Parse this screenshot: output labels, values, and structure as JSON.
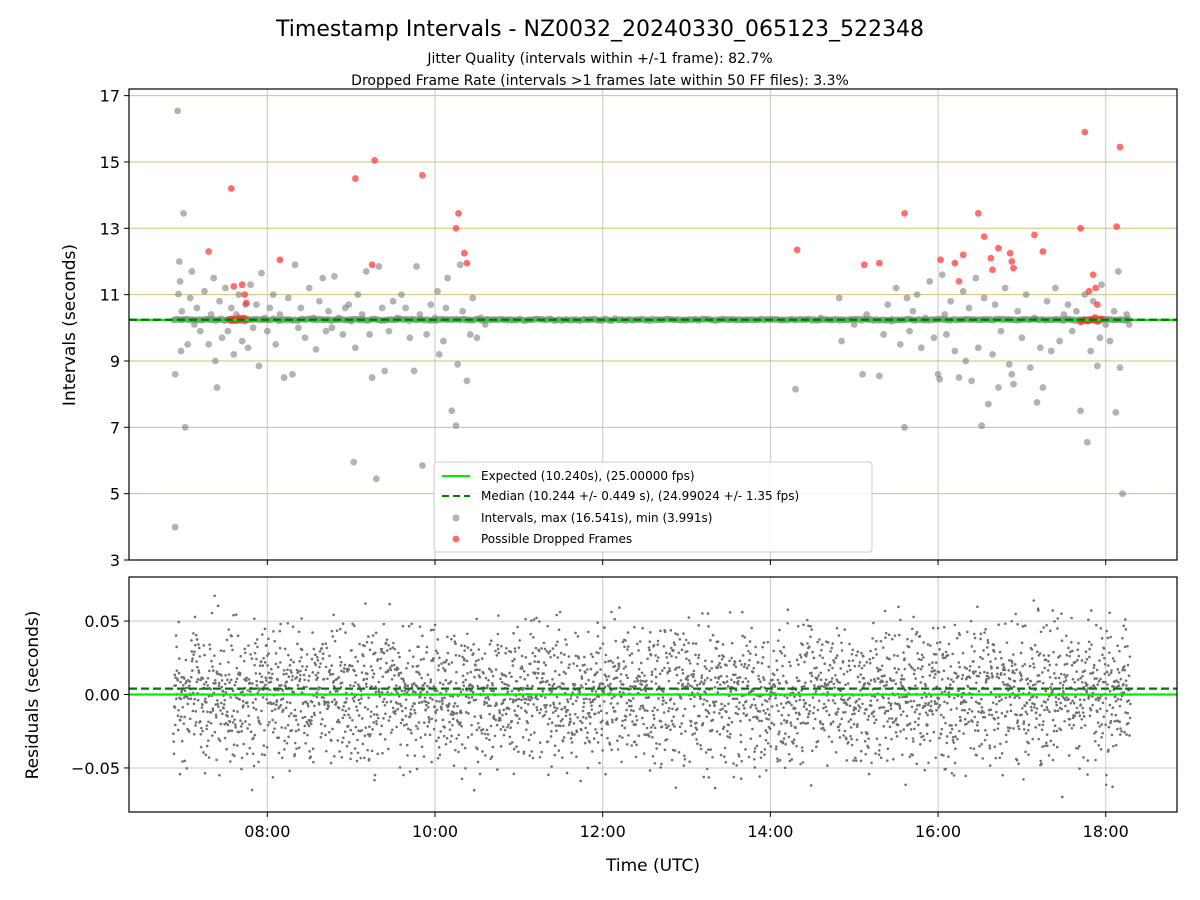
{
  "chart_data": [
    {
      "type": "scatter",
      "panel": "intervals",
      "title": "Timestamp Intervals - NZ0032_20240330_065123_522348",
      "subtitle_lines": [
        "Jitter Quality (intervals within +/-1 frame): 82.7%",
        "Dropped Frame Rate (intervals >1 frames late within 50 FF files): 3.3%"
      ],
      "ylabel": "Intervals (seconds)",
      "ylim": [
        3,
        17.2
      ],
      "xlim_hours": [
        6.35,
        18.85
      ],
      "yticks": [
        "3",
        "5",
        "7",
        "9",
        "11",
        "13",
        "15",
        "17"
      ],
      "ytick_values": [
        3,
        5,
        7,
        9,
        11,
        13,
        15,
        17
      ],
      "x_grid_hours": [
        8,
        10,
        12,
        14,
        16,
        18
      ],
      "expected_interval": 10.24,
      "median_interval": 10.244,
      "grid": "horizontal goldenrod lines, vertical gray lines",
      "legend_position": "lower center",
      "legend": [
        {
          "label": "Expected (10.240s), (25.00000 fps)",
          "style": "solid",
          "color": "#00ee00"
        },
        {
          "label": "Median (10.244 +/- 0.449 s), (24.99024 +/- 1.35 fps)",
          "style": "dashed",
          "color": "#007a00"
        },
        {
          "label": "Intervals, max (16.541s), min (3.991s)",
          "style": "marker",
          "color": "#808080"
        },
        {
          "label": "Possible Dropped Frames",
          "style": "marker",
          "color": "#ff3030"
        }
      ],
      "series": [
        {
          "name": "Intervals, max (16.541s), min (3.991s)",
          "color": "#808080",
          "points": [
            [
              6.93,
              16.54
            ],
            [
              6.94,
              11.02
            ],
            [
              6.95,
              12.0
            ],
            [
              6.96,
              11.4
            ],
            [
              6.97,
              9.3
            ],
            [
              6.98,
              10.5
            ],
            [
              7.0,
              13.45
            ],
            [
              7.02,
              7.0
            ],
            [
              7.05,
              9.5
            ],
            [
              7.08,
              10.9
            ],
            [
              7.1,
              11.7
            ],
            [
              7.13,
              10.1
            ],
            [
              7.16,
              10.6
            ],
            [
              7.2,
              9.9
            ],
            [
              7.25,
              11.1
            ],
            [
              7.3,
              9.5
            ],
            [
              7.33,
              10.4
            ],
            [
              7.36,
              11.5
            ],
            [
              7.38,
              9.0
            ],
            [
              7.4,
              8.2
            ],
            [
              7.43,
              10.8
            ],
            [
              7.46,
              9.7
            ],
            [
              7.5,
              11.2
            ],
            [
              7.53,
              9.9
            ],
            [
              7.57,
              10.6
            ],
            [
              7.6,
              9.2
            ],
            [
              7.63,
              10.4
            ],
            [
              7.66,
              11.0
            ],
            [
              7.7,
              9.6
            ],
            [
              7.74,
              10.7
            ],
            [
              7.77,
              9.4
            ],
            [
              7.8,
              11.3
            ],
            [
              7.83,
              10.0
            ],
            [
              7.87,
              10.7
            ],
            [
              7.9,
              8.85
            ],
            [
              7.93,
              11.65
            ],
            [
              7.97,
              10.3
            ],
            [
              8.0,
              9.9
            ],
            [
              8.03,
              10.6
            ],
            [
              8.07,
              11.0
            ],
            [
              8.1,
              9.5
            ],
            [
              8.15,
              10.4
            ],
            [
              8.2,
              8.5
            ],
            [
              8.25,
              10.9
            ],
            [
              8.3,
              8.6
            ],
            [
              8.33,
              11.9
            ],
            [
              8.37,
              10.0
            ],
            [
              8.4,
              10.6
            ],
            [
              8.45,
              9.7
            ],
            [
              8.5,
              11.2
            ],
            [
              8.55,
              10.3
            ],
            [
              8.58,
              9.35
            ],
            [
              8.62,
              10.8
            ],
            [
              8.66,
              11.5
            ],
            [
              8.7,
              9.9
            ],
            [
              8.73,
              10.5
            ],
            [
              8.77,
              10.0
            ],
            [
              8.8,
              11.55
            ],
            [
              8.85,
              10.3
            ],
            [
              8.9,
              9.8
            ],
            [
              8.93,
              10.6
            ],
            [
              8.97,
              10.7
            ],
            [
              9.0,
              10.2
            ],
            [
              9.03,
              5.95
            ],
            [
              9.05,
              9.4
            ],
            [
              9.08,
              11.0
            ],
            [
              9.13,
              10.4
            ],
            [
              9.18,
              11.7
            ],
            [
              9.22,
              9.8
            ],
            [
              9.25,
              8.5
            ],
            [
              9.3,
              5.45
            ],
            [
              9.33,
              11.85
            ],
            [
              9.37,
              10.6
            ],
            [
              9.4,
              8.7
            ],
            [
              9.45,
              9.9
            ],
            [
              9.5,
              10.8
            ],
            [
              9.55,
              10.3
            ],
            [
              9.6,
              11.0
            ],
            [
              9.65,
              10.6
            ],
            [
              9.7,
              9.7
            ],
            [
              9.75,
              8.7
            ],
            [
              9.78,
              11.85
            ],
            [
              9.82,
              10.4
            ],
            [
              9.85,
              5.85
            ],
            [
              9.9,
              9.8
            ],
            [
              9.95,
              10.7
            ],
            [
              10.0,
              10.3
            ],
            [
              10.03,
              11.1
            ],
            [
              10.05,
              9.2
            ],
            [
              10.1,
              9.6
            ],
            [
              10.13,
              10.6
            ],
            [
              10.15,
              11.5
            ],
            [
              10.2,
              7.5
            ],
            [
              10.25,
              7.05
            ],
            [
              10.27,
              8.9
            ],
            [
              10.3,
              11.9
            ],
            [
              10.33,
              10.5
            ],
            [
              10.38,
              8.4
            ],
            [
              10.42,
              9.8
            ],
            [
              10.45,
              10.9
            ],
            [
              10.5,
              9.7
            ],
            [
              10.55,
              10.3
            ],
            [
              10.6,
              10.1
            ],
            [
              14.3,
              8.15
            ],
            [
              14.6,
              10.3
            ],
            [
              14.82,
              10.9
            ],
            [
              14.85,
              9.6
            ],
            [
              15.0,
              10.1
            ],
            [
              15.1,
              8.6
            ],
            [
              15.15,
              10.4
            ],
            [
              15.3,
              8.55
            ],
            [
              15.35,
              9.8
            ],
            [
              15.4,
              10.7
            ],
            [
              15.45,
              10.2
            ],
            [
              15.5,
              11.2
            ],
            [
              15.55,
              9.5
            ],
            [
              15.6,
              7.0
            ],
            [
              15.63,
              10.9
            ],
            [
              15.66,
              9.9
            ],
            [
              15.7,
              10.5
            ],
            [
              15.75,
              11.0
            ],
            [
              15.8,
              9.4
            ],
            [
              15.85,
              10.3
            ],
            [
              15.9,
              11.4
            ],
            [
              15.95,
              9.7
            ],
            [
              16.0,
              8.6
            ],
            [
              16.02,
              8.45
            ],
            [
              16.05,
              11.6
            ],
            [
              16.08,
              10.4
            ],
            [
              16.1,
              9.8
            ],
            [
              16.15,
              10.8
            ],
            [
              16.2,
              9.3
            ],
            [
              16.25,
              8.5
            ],
            [
              16.3,
              11.1
            ],
            [
              16.33,
              9.0
            ],
            [
              16.37,
              10.6
            ],
            [
              16.4,
              8.4
            ],
            [
              16.45,
              11.5
            ],
            [
              16.48,
              9.4
            ],
            [
              16.52,
              7.05
            ],
            [
              16.55,
              10.9
            ],
            [
              16.6,
              7.7
            ],
            [
              16.65,
              9.2
            ],
            [
              16.68,
              10.7
            ],
            [
              16.72,
              8.2
            ],
            [
              16.75,
              9.9
            ],
            [
              16.8,
              11.2
            ],
            [
              16.85,
              8.9
            ],
            [
              16.88,
              8.6
            ],
            [
              16.9,
              8.3
            ],
            [
              16.95,
              10.5
            ],
            [
              17.0,
              9.7
            ],
            [
              17.05,
              11.0
            ],
            [
              17.1,
              8.8
            ],
            [
              17.15,
              10.3
            ],
            [
              17.18,
              7.75
            ],
            [
              17.22,
              9.4
            ],
            [
              17.25,
              8.2
            ],
            [
              17.3,
              10.8
            ],
            [
              17.35,
              9.3
            ],
            [
              17.4,
              11.2
            ],
            [
              17.45,
              9.6
            ],
            [
              17.5,
              10.4
            ],
            [
              17.55,
              10.7
            ],
            [
              17.6,
              9.9
            ],
            [
              17.65,
              10.5
            ],
            [
              17.7,
              7.5
            ],
            [
              17.75,
              11.0
            ],
            [
              17.78,
              6.55
            ],
            [
              17.82,
              9.3
            ],
            [
              17.85,
              10.8
            ],
            [
              17.9,
              8.85
            ],
            [
              17.93,
              9.7
            ],
            [
              17.95,
              11.3
            ],
            [
              18.0,
              10.1
            ],
            [
              18.05,
              9.6
            ],
            [
              18.1,
              10.5
            ],
            [
              18.12,
              7.45
            ],
            [
              18.15,
              11.7
            ],
            [
              18.17,
              8.8
            ],
            [
              18.2,
              5.0
            ],
            [
              18.25,
              10.4
            ],
            [
              18.28,
              10.1
            ],
            [
              6.9,
              3.99
            ],
            [
              6.9,
              8.6
            ]
          ]
        },
        {
          "name": "Possible Dropped Frames",
          "color": "#ff3030",
          "points": [
            [
              7.3,
              12.3
            ],
            [
              7.57,
              14.2
            ],
            [
              7.6,
              11.25
            ],
            [
              7.7,
              11.3
            ],
            [
              7.73,
              11.0
            ],
            [
              7.75,
              10.75
            ],
            [
              8.15,
              12.05
            ],
            [
              9.05,
              14.5
            ],
            [
              9.25,
              11.9
            ],
            [
              9.28,
              15.05
            ],
            [
              9.85,
              14.6
            ],
            [
              10.25,
              13.0
            ],
            [
              10.28,
              13.45
            ],
            [
              10.35,
              12.25
            ],
            [
              10.38,
              11.95
            ],
            [
              14.32,
              12.35
            ],
            [
              15.12,
              11.9
            ],
            [
              15.3,
              11.95
            ],
            [
              15.6,
              13.45
            ],
            [
              16.03,
              12.05
            ],
            [
              16.2,
              11.95
            ],
            [
              16.25,
              11.4
            ],
            [
              16.3,
              12.2
            ],
            [
              16.48,
              13.45
            ],
            [
              16.55,
              12.75
            ],
            [
              16.63,
              12.1
            ],
            [
              16.65,
              11.75
            ],
            [
              16.72,
              12.4
            ],
            [
              16.86,
              12.25
            ],
            [
              16.88,
              12.0
            ],
            [
              16.9,
              11.8
            ],
            [
              17.15,
              12.8
            ],
            [
              17.25,
              12.3
            ],
            [
              17.7,
              13.0
            ],
            [
              17.75,
              15.9
            ],
            [
              17.8,
              11.1
            ],
            [
              17.85,
              11.6
            ],
            [
              17.88,
              11.2
            ],
            [
              17.9,
              10.7
            ],
            [
              18.13,
              13.05
            ],
            [
              18.17,
              15.45
            ]
          ]
        }
      ],
      "red_cluster_near_median_hours": [
        7.55,
        7.75,
        17.7,
        17.95
      ]
    },
    {
      "type": "scatter",
      "panel": "residuals",
      "xlabel": "Time (UTC)",
      "ylabel": "Residuals (seconds)",
      "ylim": [
        -0.08,
        0.08
      ],
      "xlim_hours": [
        6.35,
        18.85
      ],
      "yticks": [
        "0.05",
        "0.00",
        "−0.05"
      ],
      "ytick_values": [
        0.05,
        0.0,
        -0.05
      ],
      "xticks": [
        "08:00",
        "10:00",
        "12:00",
        "14:00",
        "16:00",
        "18:00"
      ],
      "xtick_hours": [
        8,
        10,
        12,
        14,
        16,
        18
      ],
      "expected_line": 0.0,
      "median_line": 0.004,
      "time_range_hours": [
        6.88,
        18.3
      ],
      "residual_spread_approx": [
        -0.078,
        0.078
      ],
      "point_count_approx": 4000,
      "marker_color": "#707070",
      "grid": "on"
    }
  ]
}
